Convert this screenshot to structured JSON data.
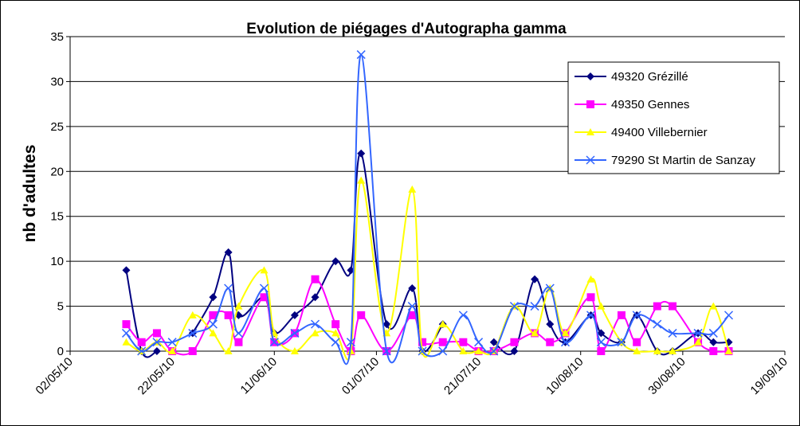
{
  "chart_data": {
    "type": "line",
    "title": "Evolution de piégages d'Autographa gamma",
    "y_label": "nb d'adultes",
    "x": [
      "2010-05-13",
      "2010-05-16",
      "2010-05-19",
      "2010-05-22",
      "2010-05-26",
      "2010-05-30",
      "2010-06-02",
      "2010-06-04",
      "2010-06-09",
      "2010-06-11",
      "2010-06-15",
      "2010-06-19",
      "2010-06-23",
      "2010-06-26",
      "2010-06-28",
      "2010-07-03",
      "2010-07-08",
      "2010-07-10",
      "2010-07-14",
      "2010-07-18",
      "2010-07-21",
      "2010-07-24",
      "2010-07-28",
      "2010-08-01",
      "2010-08-04",
      "2010-08-07",
      "2010-08-12",
      "2010-08-14",
      "2010-08-18",
      "2010-08-21",
      "2010-08-25",
      "2010-08-28",
      "2010-09-02",
      "2010-09-05",
      "2010-09-08"
    ],
    "series": [
      {
        "name": "49320 Grézillé",
        "color": "#000080",
        "marker": "diamond",
        "values": [
          9,
          0,
          0,
          null,
          2,
          6,
          11,
          4,
          6,
          2,
          4,
          6,
          10,
          9,
          22,
          3,
          7,
          0,
          3,
          null,
          null,
          1,
          0,
          8,
          3,
          1,
          4,
          2,
          1,
          4,
          0,
          0,
          2,
          1,
          1
        ]
      },
      {
        "name": "49350 Gennes",
        "color": "#FF00FF",
        "marker": "square",
        "values": [
          3,
          1,
          2,
          0,
          0,
          4,
          4,
          1,
          6,
          1,
          2,
          8,
          3,
          0,
          4,
          0,
          4,
          1,
          1,
          1,
          0,
          0,
          1,
          2,
          1,
          2,
          6,
          0,
          4,
          1,
          5,
          5,
          1,
          0,
          0
        ]
      },
      {
        "name": "49400 Villebernier",
        "color": "#FFFF00",
        "marker": "triangle",
        "values": [
          1,
          0,
          1,
          0,
          4,
          2,
          0,
          5,
          9,
          2,
          0,
          2,
          2,
          0,
          19,
          2,
          18,
          0,
          3,
          0,
          0,
          0,
          5,
          2,
          7,
          2,
          8,
          5,
          1,
          0,
          0,
          0,
          1,
          5,
          0
        ]
      },
      {
        "name": "79290 St Martin de Sanzay",
        "color": "#3366FF",
        "marker": "x",
        "values": [
          2,
          0,
          1,
          1,
          2,
          3,
          7,
          2,
          7,
          1,
          2,
          3,
          1,
          1,
          33,
          0,
          5,
          0,
          0,
          4,
          1,
          0,
          5,
          5,
          7,
          1,
          4,
          1,
          1,
          4,
          3,
          2,
          2,
          2,
          4
        ]
      }
    ],
    "xlim": [
      "2010-05-02",
      "2010-09-19"
    ],
    "xticks": [
      {
        "value": "2010-05-02",
        "label": "02/05/10"
      },
      {
        "value": "2010-05-22",
        "label": "22/05/10"
      },
      {
        "value": "2010-06-11",
        "label": "11/06/10"
      },
      {
        "value": "2010-07-01",
        "label": "01/07/10"
      },
      {
        "value": "2010-07-21",
        "label": "21/07/10"
      },
      {
        "value": "2010-08-10",
        "label": "10/08/10"
      },
      {
        "value": "2010-08-30",
        "label": "30/08/10"
      },
      {
        "value": "2010-09-19",
        "label": "19/09/10"
      }
    ],
    "ylim": [
      0,
      35
    ],
    "yticks": [
      0,
      5,
      10,
      15,
      20,
      25,
      30,
      35
    ],
    "grid": true,
    "legend": "top-right"
  }
}
